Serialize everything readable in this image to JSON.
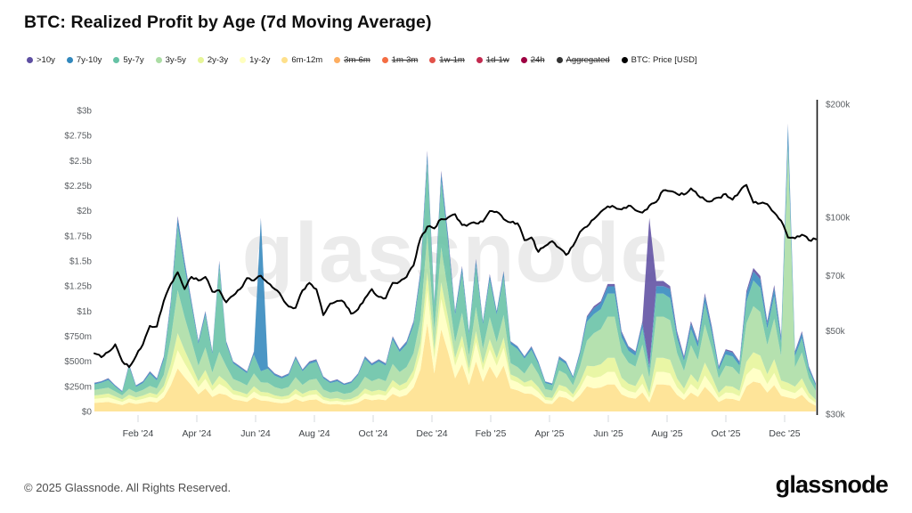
{
  "title": "BTC: Realized Profit by Age (7d Moving Average)",
  "watermark": "glassnode",
  "footer": {
    "copyright": "© 2025 Glassnode. All Rights Reserved.",
    "logo_text": "glassnode"
  },
  "legend": {
    "items": [
      {
        "label": ">10y",
        "color": "#5e4fa2",
        "disabled": false
      },
      {
        "label": "7y-10y",
        "color": "#3288bd",
        "disabled": false
      },
      {
        "label": "5y-7y",
        "color": "#66c2a5",
        "disabled": false
      },
      {
        "label": "3y-5y",
        "color": "#abdda4",
        "disabled": false
      },
      {
        "label": "2y-3y",
        "color": "#e6f598",
        "disabled": false
      },
      {
        "label": "1y-2y",
        "color": "#ffffbf",
        "disabled": false
      },
      {
        "label": "6m-12m",
        "color": "#fee08b",
        "disabled": false
      },
      {
        "label": "3m-6m",
        "color": "#fdae61",
        "disabled": true
      },
      {
        "label": "1m-3m",
        "color": "#f46d43",
        "disabled": true
      },
      {
        "label": "1w-1m",
        "color": "#e25249",
        "disabled": true
      },
      {
        "label": "1d-1w",
        "color": "#c32a4f",
        "disabled": true
      },
      {
        "label": "24h",
        "color": "#9e0142",
        "disabled": true
      },
      {
        "label": "Aggregated",
        "color": "#333333",
        "disabled": true
      },
      {
        "label": "BTC: Price [USD]",
        "color": "#000000",
        "disabled": false
      }
    ]
  },
  "chart_data": {
    "type": "area",
    "stacked": true,
    "title": "BTC: Realized Profit by Age (7d Moving Average)",
    "sampling": "weekly samples, late Dec 2023 through late Dec 2025, realized profit values in USD millions",
    "x_ticks": [
      "Feb '24",
      "Apr '24",
      "Jun '24",
      "Aug '24",
      "Oct '24",
      "Dec '24",
      "Feb '25",
      "Apr '25",
      "Jun '25",
      "Aug '25",
      "Oct '25",
      "Dec '25"
    ],
    "left_axis": {
      "title": "Realized Profit (USD)",
      "tick_labels": [
        "$0",
        "$250m",
        "$500m",
        "$750m",
        "$1b",
        "$1.25b",
        "$1.5b",
        "$1.75b",
        "$2b",
        "$2.25b",
        "$2.5b",
        "$2.75b",
        "$3b"
      ],
      "tick_values_m": [
        0,
        250,
        500,
        750,
        1000,
        1250,
        1500,
        1750,
        2000,
        2250,
        2500,
        2750,
        3000
      ],
      "max_m": 3000,
      "grid": false
    },
    "right_axis": {
      "title": "BTC Price (USD)",
      "scale": "log",
      "tick_labels": [
        "$30k",
        "$50k",
        "$70k",
        "$100k",
        "$200k"
      ],
      "tick_values_k": [
        30,
        50,
        70,
        100,
        200
      ]
    },
    "series": [
      {
        "name": "6m-12m",
        "color": "#fee08b",
        "values": [
          85,
          90,
          95,
          80,
          65,
          90,
          75,
          85,
          100,
          90,
          140,
          260,
          430,
          340,
          260,
          170,
          230,
          145,
          180,
          165,
          120,
          110,
          95,
          140,
          110,
          105,
          90,
          82,
          90,
          125,
          98,
          115,
          120,
          82,
          70,
          75,
          65,
          70,
          88,
          128,
          112,
          121,
          112,
          175,
          145,
          165,
          240,
          420,
          880,
          380,
          820,
          590,
          330,
          470,
          265,
          500,
          295,
          450,
          330,
          460,
          230,
          210,
          180,
          175,
          135,
          80,
          75,
          148,
          135,
          95,
          160,
          250,
          230,
          240,
          270,
          270,
          170,
          140,
          128,
          190,
          90,
          270,
          270,
          260,
          165,
          115,
          188,
          146,
          246,
          177,
          94,
          129,
          125,
          104,
          250,
          298,
          281,
          188,
          263,
          156,
          140,
          125,
          167,
          94,
          58
        ]
      },
      {
        "name": "1y-2y",
        "color": "#ffffbf",
        "values": [
          40,
          42,
          45,
          38,
          30,
          40,
          35,
          40,
          46,
          42,
          60,
          110,
          180,
          140,
          105,
          70,
          95,
          60,
          95,
          70,
          50,
          45,
          40,
          58,
          45,
          44,
          38,
          35,
          38,
          52,
          41,
          48,
          50,
          34,
          29,
          31,
          27,
          29,
          37,
          53,
          46,
          50,
          46,
          72,
          60,
          68,
          95,
          160,
          330,
          145,
          300,
          220,
          125,
          180,
          100,
          190,
          112,
          170,
          125,
          175,
          88,
          80,
          68,
          75,
          58,
          35,
          32,
          63,
          58,
          40,
          70,
          110,
          105,
          110,
          125,
          125,
          78,
          64,
          59,
          88,
          45,
          125,
          125,
          120,
          77,
          53,
          86,
          67,
          113,
          82,
          43,
          60,
          58,
          48,
          115,
          137,
          130,
          86,
          121,
          72,
          65,
          58,
          77,
          43,
          27
        ]
      },
      {
        "name": "2y-3y",
        "color": "#e6f598",
        "values": [
          35,
          36,
          38,
          32,
          26,
          36,
          30,
          34,
          40,
          36,
          55,
          100,
          170,
          130,
          95,
          62,
          88,
          52,
          80,
          62,
          44,
          40,
          36,
          52,
          40,
          40,
          33,
          30,
          33,
          47,
          36,
          43,
          45,
          30,
          26,
          27,
          24,
          26,
          33,
          47,
          41,
          45,
          41,
          65,
          53,
          60,
          75,
          105,
          180,
          90,
          165,
          120,
          75,
          105,
          60,
          110,
          68,
          100,
          75,
          102,
          51,
          48,
          40,
          65,
          50,
          30,
          28,
          55,
          50,
          35,
          60,
          95,
          115,
          120,
          140,
          140,
          88,
          72,
          66,
          100,
          50,
          140,
          140,
          135,
          87,
          60,
          98,
          76,
          128,
          92,
          49,
          67,
          65,
          54,
          130,
          155,
          146,
          98,
          137,
          81,
          80,
          65,
          87,
          49,
          30
        ]
      },
      {
        "name": "3y-5y",
        "color": "#abdda4",
        "values": [
          55,
          58,
          60,
          50,
          40,
          60,
          50,
          56,
          70,
          62,
          110,
          250,
          430,
          330,
          245,
          155,
          225,
          130,
          240,
          155,
          110,
          100,
          88,
          130,
          95,
          98,
          82,
          76,
          83,
          118,
          90,
          108,
          112,
          74,
          64,
          68,
          60,
          64,
          82,
          118,
          103,
          112,
          103,
          162,
          134,
          150,
          170,
          230,
          380,
          195,
          350,
          260,
          160,
          230,
          130,
          240,
          148,
          220,
          160,
          225,
          112,
          105,
          89,
          170,
          130,
          78,
          73,
          143,
          130,
          91,
          157,
          250,
          330,
          350,
          410,
          410,
          258,
          210,
          194,
          290,
          150,
          410,
          410,
          395,
          255,
          176,
          290,
          225,
          380,
          274,
          145,
          200,
          193,
          161,
          385,
          460,
          434,
          290,
          405,
          242,
          2330,
          193,
          258,
          145,
          90
        ]
      },
      {
        "name": "5y-7y",
        "color": "#66c2a5",
        "values": [
          55,
          60,
          75,
          48,
          32,
          220,
          55,
          68,
          120,
          80,
          150,
          330,
          640,
          490,
          350,
          215,
          320,
          185,
          850,
          220,
          155,
          135,
          122,
          185,
          110,
          140,
          115,
          105,
          115,
          185,
          135,
          160,
          168,
          110,
          94,
          100,
          87,
          94,
          121,
          178,
          155,
          168,
          155,
          243,
          200,
          225,
          280,
          420,
          720,
          250,
          660,
          480,
          270,
          400,
          215,
          410,
          245,
          370,
          275,
          380,
          190,
          178,
          150,
          130,
          100,
          60,
          56,
          110,
          100,
          70,
          120,
          190,
          190,
          200,
          230,
          230,
          145,
          118,
          109,
          165,
          85,
          230,
          230,
          220,
          145,
          100,
          162,
          126,
          212,
          153,
          81,
          112,
          108,
          90,
          215,
          256,
          242,
          162,
          226,
          135,
          60,
          108,
          144,
          81,
          50
        ]
      },
      {
        "name": "7y-10y",
        "color": "#3288bd",
        "values": [
          12,
          12,
          14,
          10,
          8,
          18,
          12,
          14,
          18,
          16,
          25,
          40,
          75,
          55,
          38,
          24,
          33,
          20,
          45,
          22,
          16,
          15,
          14,
          26,
          1520,
          18,
          16,
          15,
          16,
          18,
          15,
          18,
          18,
          15,
          13,
          14,
          12,
          13,
          14,
          19,
          17,
          18,
          17,
          25,
          21,
          24,
          30,
          50,
          85,
          30,
          80,
          60,
          32,
          50,
          25,
          55,
          27,
          45,
          30,
          48,
          24,
          24,
          19,
          28,
          22,
          14,
          13,
          24,
          22,
          16,
          26,
          41,
          60,
          62,
          72,
          72,
          46,
          37,
          35,
          52,
          30,
          75,
          75,
          90,
          46,
          32,
          56,
          44,
          74,
          53,
          28,
          39,
          38,
          31,
          75,
          90,
          85,
          56,
          79,
          47,
          180,
          38,
          50,
          28,
          18
        ]
      },
      {
        "name": ">10y",
        "color": "#5e4fa2",
        "values": [
          4,
          4,
          5,
          4,
          3,
          6,
          4,
          5,
          6,
          5,
          8,
          12,
          22,
          16,
          11,
          7,
          10,
          6,
          12,
          7,
          5,
          5,
          5,
          8,
          10,
          6,
          5,
          5,
          5,
          6,
          5,
          7,
          7,
          5,
          4,
          5,
          4,
          4,
          5,
          7,
          6,
          6,
          6,
          8,
          7,
          8,
          10,
          15,
          25,
          10,
          25,
          20,
          8,
          15,
          5,
          15,
          5,
          15,
          5,
          10,
          5,
          5,
          4,
          7,
          5,
          3,
          3,
          7,
          5,
          3,
          7,
          14,
          20,
          18,
          23,
          23,
          15,
          9,
          9,
          15,
          1480,
          50,
          50,
          30,
          25,
          14,
          20,
          16,
          27,
          19,
          10,
          13,
          13,
          12,
          30,
          34,
          32,
          20,
          29,
          17,
          15,
          13,
          17,
          10,
          7
        ]
      }
    ],
    "price": {
      "name": "BTC: Price [USD]",
      "color": "#000000",
      "unit": "USD thousands",
      "values": [
        43.5,
        42.5,
        43.9,
        46.0,
        41.5,
        40.0,
        42.8,
        46.0,
        51.5,
        51.3,
        60.0,
        66.5,
        71.5,
        64.5,
        69.5,
        68.0,
        69.5,
        63.5,
        64.0,
        59.5,
        62.0,
        64.5,
        69.0,
        68.0,
        70.0,
        67.0,
        64.5,
        61.5,
        58.0,
        57.5,
        64.0,
        67.0,
        64.5,
        55.0,
        59.0,
        60.0,
        59.5,
        55.5,
        57.0,
        61.0,
        64.5,
        61.5,
        61.0,
        67.0,
        67.5,
        69.5,
        74.5,
        88.0,
        94.5,
        93.5,
        99.0,
        100.0,
        102.0,
        95.5,
        96.0,
        96.5,
        97.5,
        104.0,
        103.5,
        99.0,
        97.0,
        96.5,
        87.0,
        88.5,
        81.0,
        84.0,
        86.5,
        83.0,
        79.5,
        84.0,
        91.5,
        94.5,
        99.0,
        103.5,
        107.0,
        106.5,
        105.0,
        107.5,
        104.5,
        103.0,
        107.5,
        110.0,
        118.0,
        117.5,
        115.5,
        115.0,
        119.5,
        114.5,
        111.5,
        110.5,
        113.0,
        115.5,
        111.5,
        117.0,
        122.0,
        109.5,
        109.0,
        108.5,
        103.0,
        98.0,
        88.5,
        88.0,
        90.0,
        87.0,
        87.5
      ]
    }
  }
}
